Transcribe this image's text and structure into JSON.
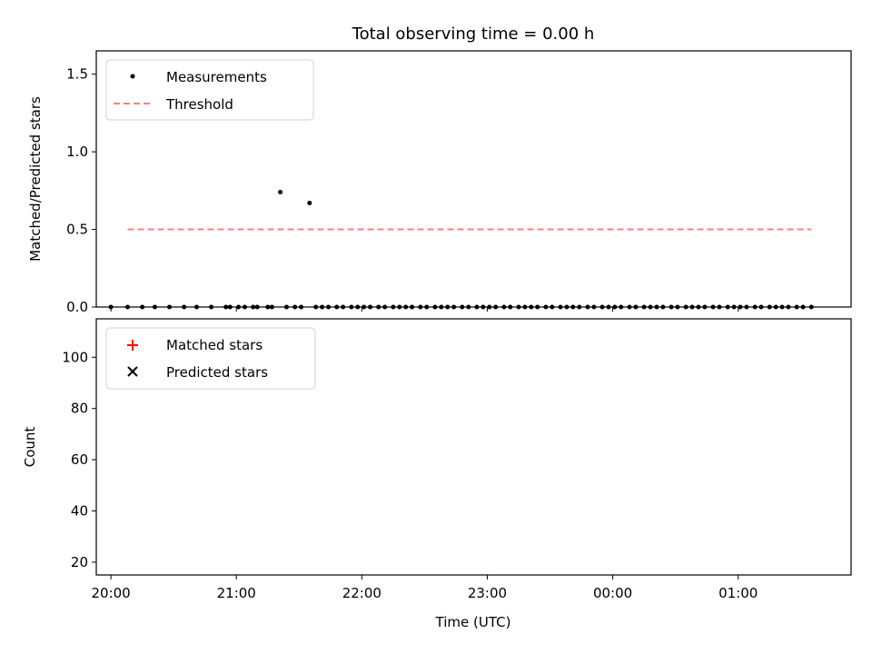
{
  "chart_data": [
    {
      "type": "scatter",
      "title": "Total observing time = 0.00 h",
      "xlabel": "",
      "ylabel": "Matched/Predicted stars",
      "ylim": [
        0,
        1.65
      ],
      "xlim": [
        "19:53",
        "01:54"
      ],
      "yticks": [
        "0.0",
        "0.5",
        "1.0",
        "1.5"
      ],
      "grid": false,
      "legend": {
        "placement": "top-left",
        "entries": [
          "Measurements",
          "Threshold"
        ]
      },
      "threshold": {
        "name": "Threshold",
        "y": 0.5,
        "x_start": "20:08",
        "x_end": "01:35",
        "color": "#ff8080",
        "style": "dashed"
      },
      "series": [
        {
          "name": "Measurements",
          "marker": "dot",
          "color": "#000000",
          "x": [
            "20:08",
            "20:15",
            "20:21",
            "20:28",
            "20:35",
            "20:41",
            "20:48",
            "20:55",
            "21:01",
            "21:08",
            "21:15",
            "21:21",
            "21:28",
            "21:35",
            "21:41",
            "21:48",
            "21:55",
            "22:01",
            "22:08",
            "22:15",
            "22:21",
            "22:28",
            "22:35",
            "22:41",
            "22:48",
            "22:55",
            "23:01",
            "23:08",
            "23:15",
            "23:21",
            "23:28",
            "23:35",
            "23:41",
            "23:48",
            "23:55",
            "00:01",
            "00:08",
            "00:15",
            "00:21",
            "00:28",
            "00:35",
            "00:41",
            "00:48",
            "00:55",
            "01:01",
            "01:08",
            "01:15",
            "01:21",
            "01:28",
            "01:35",
            "20:00",
            "20:57",
            "21:04",
            "21:10",
            "21:17",
            "21:24",
            "21:31",
            "21:38",
            "21:44",
            "21:51",
            "21:58",
            "22:04",
            "22:11",
            "22:18",
            "22:24",
            "22:31",
            "22:38",
            "22:44",
            "22:51",
            "22:58",
            "23:04",
            "23:11",
            "23:18",
            "23:24",
            "23:31",
            "23:38",
            "23:44",
            "23:51",
            "23:58",
            "00:04",
            "00:11",
            "00:18",
            "00:24",
            "00:31",
            "00:38",
            "00:44",
            "00:51",
            "00:58",
            "01:04",
            "01:11",
            "01:18",
            "01:24",
            "01:31"
          ],
          "y": [
            0,
            0,
            0,
            0,
            0,
            0,
            0,
            0,
            0,
            0,
            0,
            0.74,
            0,
            0.67,
            0,
            0,
            0,
            0,
            0,
            0,
            0,
            0,
            0,
            0,
            0,
            0,
            0,
            0,
            0,
            0,
            0,
            0,
            0,
            0,
            0,
            0,
            0,
            0,
            0,
            0,
            0,
            0,
            0,
            0,
            0,
            0,
            0,
            0,
            0,
            0,
            0,
            0,
            0,
            0,
            0,
            0,
            0,
            0,
            0,
            0,
            0,
            0,
            0,
            0,
            0,
            0,
            0,
            0,
            0,
            0,
            0,
            0,
            0,
            0,
            0,
            0,
            0,
            0,
            0,
            0,
            0,
            0,
            0,
            0,
            0,
            0,
            0,
            0,
            0,
            0,
            0,
            0,
            0
          ]
        }
      ]
    },
    {
      "type": "scatter",
      "title": "",
      "xlabel": "Time (UTC)",
      "ylabel": "Count",
      "ylim": [
        15,
        115
      ],
      "xlim": [
        "19:53",
        "01:54"
      ],
      "xticks": [
        "20:00",
        "21:00",
        "22:00",
        "23:00",
        "00:00",
        "01:00"
      ],
      "yticks": [
        "20",
        "40",
        "60",
        "80",
        "100"
      ],
      "grid": false,
      "legend": {
        "placement": "top-left",
        "entries": [
          "Matched stars",
          "Predicted stars"
        ]
      },
      "series": [
        {
          "name": "Matched stars",
          "marker": "plus",
          "color": "#ff0000",
          "x": [],
          "y": []
        },
        {
          "name": "Predicted stars",
          "marker": "x",
          "color": "#000000",
          "x": [],
          "y": []
        }
      ]
    }
  ]
}
